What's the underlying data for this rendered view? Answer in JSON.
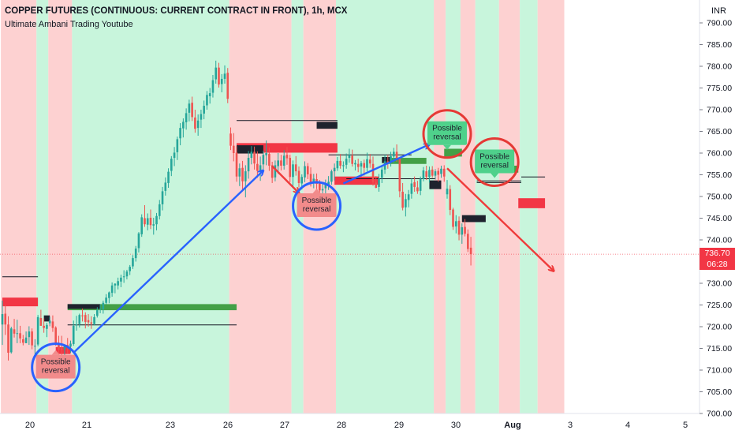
{
  "header": {
    "title": "COPPER FUTURES (CONTINUOUS: CURRENT CONTRACT IN FRONT), 1h, MCX",
    "subtitle": "Ultimate Ambani Trading Youtube"
  },
  "axis": {
    "currency": "INR"
  },
  "price_badge": {
    "price": "736.70",
    "countdown": "06:28"
  },
  "colors": {
    "bear_zone": "#fdd1d1",
    "bull_zone": "#c8f5dc",
    "up_candle": "#26a69a",
    "down_candle": "#ef5350",
    "arrow_blue": "#2962ff",
    "arrow_red": "#ef3b3b",
    "supply_zone": "#f23645",
    "demand_zone": "#43a047",
    "dark_block": "#1e222d"
  },
  "chart_data": {
    "type": "candlestick",
    "y_axis": {
      "min": 700,
      "max": 790,
      "step": 5,
      "side": "right"
    },
    "x_ticks": [
      "20",
      "21",
      "23",
      "26",
      "27",
      "28",
      "29",
      "30",
      "Aug",
      "3",
      "4",
      "5"
    ],
    "last_price": 736.7,
    "candles": [
      [
        720.5,
        726.0,
        715.8,
        722.9
      ],
      [
        723.0,
        725.0,
        718.1,
        720.5
      ],
      [
        720.5,
        722.4,
        712.2,
        714.0
      ],
      [
        714.1,
        720.0,
        713.8,
        719.6
      ],
      [
        719.4,
        721.8,
        717.5,
        718.4
      ],
      [
        718.5,
        721.6,
        716.2,
        718.5
      ],
      [
        718.5,
        720.2,
        716.2,
        717.3
      ],
      [
        717.1,
        718.1,
        715.7,
        716.3
      ],
      [
        716.2,
        718.9,
        716.2,
        717.5
      ],
      [
        717.6,
        720.1,
        715.8,
        718.9
      ],
      [
        718.9,
        719.6,
        714.8,
        715.7
      ],
      [
        715.6,
        717.1,
        713.5,
        715.6
      ],
      [
        715.9,
        722.7,
        715.5,
        722.2
      ],
      [
        722.0,
        723.9,
        720.2,
        720.2
      ],
      [
        720.2,
        721.9,
        718.6,
        719.7
      ],
      [
        719.5,
        720.9,
        717.6,
        720.4
      ],
      [
        720.8,
        722.3,
        720.1,
        721.4
      ],
      [
        721.2,
        722.6,
        718.8,
        719.7
      ],
      [
        719.8,
        720.1,
        715.6,
        716.0
      ],
      [
        716.3,
        717.9,
        713.5,
        714.7
      ],
      [
        715.0,
        717.9,
        713.1,
        714.7
      ],
      [
        714.8,
        715.7,
        713.3,
        715.7
      ],
      [
        715.8,
        717.4,
        713.8,
        715.2
      ],
      [
        715.4,
        716.8,
        714.0,
        716.1
      ],
      [
        716.0,
        721.4,
        715.6,
        720.2
      ],
      [
        720.4,
        722.5,
        719.1,
        720.5
      ],
      [
        720.6,
        723.0,
        719.8,
        722.7
      ],
      [
        722.6,
        724.2,
        721.2,
        722.4
      ],
      [
        722.7,
        723.3,
        719.6,
        721.1
      ],
      [
        721.5,
        722.9,
        720.0,
        721.0
      ],
      [
        721.0,
        722.4,
        719.5,
        720.7
      ],
      [
        720.6,
        722.9,
        720.3,
        722.2
      ],
      [
        722.5,
        724.5,
        722.1,
        723.8
      ],
      [
        723.9,
        725.1,
        723.1,
        724.1
      ],
      [
        724.0,
        726.0,
        723.0,
        725.5
      ],
      [
        725.5,
        727.5,
        725.1,
        726.7
      ],
      [
        726.6,
        728.1,
        725.4,
        727.9
      ],
      [
        727.8,
        730.2,
        726.9,
        729.5
      ],
      [
        729.5,
        730.0,
        727.7,
        729.9
      ],
      [
        729.5,
        731.3,
        728.6,
        730.5
      ],
      [
        730.4,
        732.0,
        729.1,
        731.3
      ],
      [
        731.4,
        733.0,
        730.1,
        731.6
      ],
      [
        731.6,
        733.1,
        730.9,
        732.7
      ],
      [
        732.8,
        734.2,
        731.9,
        733.8
      ],
      [
        733.9,
        736.5,
        733.3,
        735.8
      ],
      [
        735.8,
        738.6,
        735.0,
        738.0
      ],
      [
        738.1,
        741.8,
        737.1,
        741.5
      ],
      [
        741.3,
        745.9,
        740.7,
        745.2
      ],
      [
        745.0,
        748.0,
        743.0,
        743.6
      ],
      [
        743.5,
        746.1,
        742.2,
        745.0
      ],
      [
        745.1,
        747.0,
        742.5,
        743.4
      ],
      [
        743.3,
        745.1,
        741.2,
        743.6
      ],
      [
        743.6,
        746.2,
        742.2,
        745.5
      ],
      [
        745.5,
        749.2,
        744.7,
        748.2
      ],
      [
        748.2,
        752.2,
        746.8,
        751.2
      ],
      [
        751.3,
        754.4,
        750.2,
        753.2
      ],
      [
        753.1,
        756.5,
        752.0,
        755.7
      ],
      [
        755.9,
        759.3,
        754.7,
        758.7
      ],
      [
        758.9,
        761.4,
        757.0,
        760.1
      ],
      [
        760.2,
        763.8,
        758.4,
        763.2
      ],
      [
        763.4,
        766.9,
        761.8,
        765.8
      ],
      [
        765.7,
        768.0,
        763.6,
        767.2
      ],
      [
        767.1,
        770.3,
        765.4,
        769.2
      ],
      [
        769.3,
        772.3,
        767.3,
        771.4
      ],
      [
        771.6,
        773.0,
        767.4,
        768.3
      ],
      [
        768.2,
        770.0,
        764.7,
        765.6
      ],
      [
        765.8,
        768.9,
        764.0,
        767.5
      ],
      [
        767.7,
        770.0,
        765.8,
        769.0
      ],
      [
        769.1,
        772.1,
        767.8,
        770.9
      ],
      [
        771.0,
        774.3,
        770.0,
        773.4
      ],
      [
        773.1,
        775.0,
        771.4,
        773.8
      ],
      [
        773.9,
        778.0,
        772.8,
        776.8
      ],
      [
        777.0,
        781.3,
        776.0,
        779.7
      ],
      [
        779.7,
        780.8,
        775.1,
        775.8
      ],
      [
        775.9,
        778.2,
        774.0,
        777.1
      ],
      [
        777.1,
        780.2,
        776.0,
        778.3
      ],
      [
        778.5,
        779.6,
        771.5,
        772.5
      ],
      [
        764.5,
        765.9,
        760.7,
        761.7
      ],
      [
        761.7,
        764.6,
        758.1,
        760.0
      ],
      [
        760.1,
        761.6,
        753.4,
        754.6
      ],
      [
        754.6,
        757.6,
        752.4,
        756.5
      ],
      [
        756.6,
        758.2,
        751.5,
        753.5
      ],
      [
        753.5,
        757.2,
        749.8,
        755.8
      ],
      [
        755.8,
        760.5,
        754.1,
        758.9
      ],
      [
        758.9,
        761.6,
        757.4,
        760.3
      ],
      [
        760.3,
        761.5,
        756.2,
        757.6
      ],
      [
        757.5,
        760.4,
        754.3,
        755.9
      ],
      [
        756.0,
        759.2,
        753.6,
        757.2
      ],
      [
        757.4,
        760.5,
        755.9,
        759.6
      ],
      [
        759.5,
        762.9,
        757.2,
        760.0
      ],
      [
        759.8,
        761.3,
        755.9,
        757.1
      ],
      [
        757.2,
        758.0,
        753.1,
        754.3
      ],
      [
        754.4,
        758.3,
        753.5,
        757.2
      ],
      [
        757.0,
        760.0,
        755.2,
        758.3
      ],
      [
        758.3,
        759.6,
        756.0,
        757.1
      ],
      [
        757.1,
        760.7,
        756.2,
        759.4
      ],
      [
        759.6,
        761.4,
        757.3,
        758.8
      ],
      [
        758.9,
        759.6,
        753.3,
        754.5
      ],
      [
        754.5,
        758.3,
        752.4,
        757.4
      ],
      [
        757.4,
        759.3,
        754.8,
        755.8
      ],
      [
        755.9,
        756.9,
        752.1,
        753.1
      ],
      [
        753.0,
        755.1,
        751.6,
        754.5
      ],
      [
        754.4,
        758.1,
        753.3,
        757.0
      ],
      [
        757.0,
        757.7,
        754.0,
        755.1
      ],
      [
        755.2,
        756.7,
        752.3,
        753.0
      ],
      [
        753.1,
        755.2,
        751.9,
        754.1
      ],
      [
        754.0,
        755.3,
        751.6,
        752.9
      ],
      [
        753.0,
        753.8,
        750.0,
        751.4
      ],
      [
        751.4,
        753.1,
        749.9,
        751.7
      ],
      [
        751.9,
        753.9,
        750.4,
        752.9
      ],
      [
        752.7,
        754.7,
        751.5,
        753.4
      ],
      [
        753.4,
        756.2,
        752.7,
        755.8
      ],
      [
        755.8,
        757.6,
        753.7,
        756.6
      ],
      [
        756.5,
        759.1,
        755.9,
        758.2
      ],
      [
        758.2,
        759.8,
        756.4,
        757.1
      ],
      [
        757.0,
        758.1,
        755.6,
        757.2
      ],
      [
        757.3,
        759.9,
        756.4,
        758.7
      ],
      [
        758.9,
        761.0,
        757.8,
        759.6
      ],
      [
        759.4,
        760.8,
        756.9,
        757.5
      ],
      [
        757.4,
        758.4,
        756.0,
        757.7
      ],
      [
        757.5,
        758.7,
        755.6,
        756.8
      ],
      [
        756.9,
        758.2,
        754.6,
        757.7
      ],
      [
        757.7,
        758.5,
        754.8,
        756.6
      ],
      [
        756.6,
        760.1,
        755.8,
        758.6
      ],
      [
        758.5,
        759.8,
        756.6,
        757.6
      ],
      [
        757.5,
        759.2,
        752.5,
        753.3
      ],
      [
        753.2,
        754.7,
        751.9,
        752.0
      ],
      [
        752.2,
        755.2,
        751.1,
        754.1
      ],
      [
        754.3,
        757.1,
        753.1,
        756.2
      ],
      [
        756.2,
        759.6,
        755.2,
        758.1
      ],
      [
        758.1,
        759.6,
        756.4,
        757.7
      ],
      [
        757.8,
        760.3,
        756.9,
        759.3
      ],
      [
        759.2,
        761.2,
        757.6,
        760.3
      ],
      [
        760.3,
        762.0,
        758.0,
        758.8
      ],
      [
        758.9,
        759.1,
        749.8,
        751.2
      ],
      [
        751.1,
        753.1,
        746.8,
        747.4
      ],
      [
        747.5,
        750.6,
        745.4,
        749.4
      ],
      [
        749.2,
        751.5,
        747.5,
        750.5
      ],
      [
        750.6,
        754.1,
        749.5,
        753.0
      ],
      [
        753.3,
        754.6,
        751.1,
        752.2
      ],
      [
        752.1,
        753.6,
        750.6,
        751.2
      ],
      [
        751.3,
        754.6,
        750.3,
        754.1
      ],
      [
        754.0,
        756.8,
        753.5,
        756.0
      ],
      [
        755.8,
        757.1,
        753.8,
        754.5
      ],
      [
        754.5,
        756.9,
        753.2,
        756.1
      ],
      [
        756.2,
        757.0,
        754.3,
        754.8
      ],
      [
        754.8,
        756.3,
        753.9,
        755.8
      ],
      [
        755.9,
        756.6,
        753.4,
        755.0
      ],
      [
        755.2,
        757.1,
        754.3,
        756.4
      ],
      [
        756.4,
        757.2,
        753.4,
        754.6
      ],
      [
        750.5,
        753.8,
        749.5,
        751.8
      ],
      [
        751.7,
        752.6,
        745.7,
        746.9
      ],
      [
        747.0,
        747.4,
        742.3,
        743.0
      ],
      [
        743.1,
        745.7,
        741.5,
        744.3
      ],
      [
        744.4,
        745.4,
        739.9,
        741.2
      ],
      [
        741.2,
        743.8,
        739.1,
        742.9
      ],
      [
        743.0,
        744.8,
        740.8,
        741.4
      ],
      [
        741.4,
        742.4,
        737.2,
        737.9
      ],
      [
        738.2,
        740.7,
        734.1,
        736.7
      ]
    ],
    "zones": [
      {
        "color": "bear",
        "from": 0,
        "to": 12
      },
      {
        "color": "bull",
        "from": 12,
        "to": 16
      },
      {
        "color": "bear",
        "from": 16,
        "to": 24
      },
      {
        "color": "bull",
        "from": 24,
        "to": 77
      },
      {
        "color": "bear",
        "from": 77,
        "to": 98
      },
      {
        "color": "bull",
        "from": 98,
        "to": 102
      },
      {
        "color": "bear",
        "from": 102,
        "to": 113
      },
      {
        "color": "bull",
        "from": 113,
        "to": 146
      },
      {
        "color": "bear",
        "from": 146,
        "to": 150
      },
      {
        "color": "bull",
        "from": 150,
        "to": 155
      },
      {
        "color": "bear",
        "from": 155,
        "to": 160
      },
      {
        "color": "bull",
        "from": 160,
        "to": 168
      },
      {
        "color": "bear",
        "from": 168,
        "to": 175
      },
      {
        "color": "bull",
        "from": 175,
        "to": 181
      },
      {
        "color": "bear",
        "from": 181,
        "to": 190
      }
    ],
    "levels": [
      {
        "kind": "supply",
        "from": 0,
        "to": 12,
        "top": 726.7,
        "bottom": 724.7
      },
      {
        "kind": "supply",
        "from": 18,
        "to": 23,
        "top": 715.3,
        "bottom": 713.7
      },
      {
        "kind": "demand",
        "from": 22,
        "to": 79,
        "top": 725.2,
        "bottom": 723.8
      },
      {
        "kind": "dark",
        "from": 22,
        "to": 33,
        "top": 725.2,
        "bottom": 724.1
      },
      {
        "kind": "dark",
        "from": 14,
        "to": 16,
        "top": 722.6,
        "bottom": 721.2
      },
      {
        "kind": "line",
        "from": 0,
        "to": 12,
        "value": 731.5
      },
      {
        "kind": "line",
        "from": 22,
        "to": 79,
        "value": 720.4
      },
      {
        "kind": "line",
        "from": 79,
        "to": 113,
        "value": 767.5
      },
      {
        "kind": "supply",
        "from": 79,
        "to": 113,
        "top": 762.3,
        "bottom": 760.1
      },
      {
        "kind": "dark",
        "from": 79,
        "to": 88,
        "top": 761.8,
        "bottom": 759.9
      },
      {
        "kind": "dark",
        "from": 106,
        "to": 113,
        "top": 767.2,
        "bottom": 765.6
      },
      {
        "kind": "supply",
        "from": 112,
        "to": 127,
        "top": 754.6,
        "bottom": 752.7
      },
      {
        "kind": "line",
        "from": 110,
        "to": 138,
        "value": 759.6
      },
      {
        "kind": "demand",
        "from": 130,
        "to": 143,
        "top": 758.9,
        "bottom": 757.5
      },
      {
        "kind": "dark",
        "from": 128,
        "to": 131,
        "top": 759.1,
        "bottom": 757.7
      },
      {
        "kind": "line",
        "from": 116,
        "to": 146,
        "value": 754.1
      },
      {
        "kind": "dark",
        "from": 144,
        "to": 148,
        "top": 753.7,
        "bottom": 751.7
      },
      {
        "kind": "demand",
        "from": 149,
        "to": 155,
        "top": 761.0,
        "bottom": 759.2
      },
      {
        "kind": "dark",
        "from": 155,
        "to": 163,
        "top": 745.7,
        "bottom": 744.1
      },
      {
        "kind": "line",
        "from": 160,
        "to": 175,
        "value": 753.6
      },
      {
        "kind": "demand",
        "from": 163,
        "to": 174,
        "top": 757.1,
        "bottom": 755.5
      },
      {
        "kind": "line",
        "from": 160,
        "to": 175,
        "value": 753.2
      },
      {
        "kind": "supply",
        "from": 174,
        "to": 183,
        "top": 749.6,
        "bottom": 747.3
      },
      {
        "kind": "line",
        "from": 175,
        "to": 183,
        "value": 754.5
      }
    ],
    "annotations": [
      {
        "text": "Possible\nreversal",
        "type": "bullish-label",
        "bar": 18,
        "price": 710.8,
        "circle": true,
        "circle_color": "blue"
      },
      {
        "text": "Possible\nreversal",
        "type": "bullish-label",
        "bar": 106,
        "price": 748.0,
        "circle": true,
        "circle_color": "blue"
      },
      {
        "text": "Possible\nreversal",
        "type": "bearish-label",
        "bar": 150,
        "price": 764.6,
        "circle": true,
        "circle_color": "red"
      },
      {
        "text": "Possible\nreversal",
        "type": "bearish-label",
        "bar": 166,
        "price": 758.1,
        "circle": true,
        "circle_color": "red"
      }
    ],
    "arrows": [
      {
        "color": "blue",
        "from": [
          24,
          714.0
        ],
        "to": [
          88,
          756.0
        ]
      },
      {
        "color": "blue",
        "from": [
          115,
          753.0
        ],
        "to": [
          144,
          762.0
        ]
      },
      {
        "color": "red",
        "from": [
          91,
          757.0
        ],
        "to": [
          100,
          750.8
        ]
      },
      {
        "color": "red",
        "from": [
          150,
          756.5
        ],
        "to": [
          186,
          732.8
        ]
      }
    ]
  }
}
